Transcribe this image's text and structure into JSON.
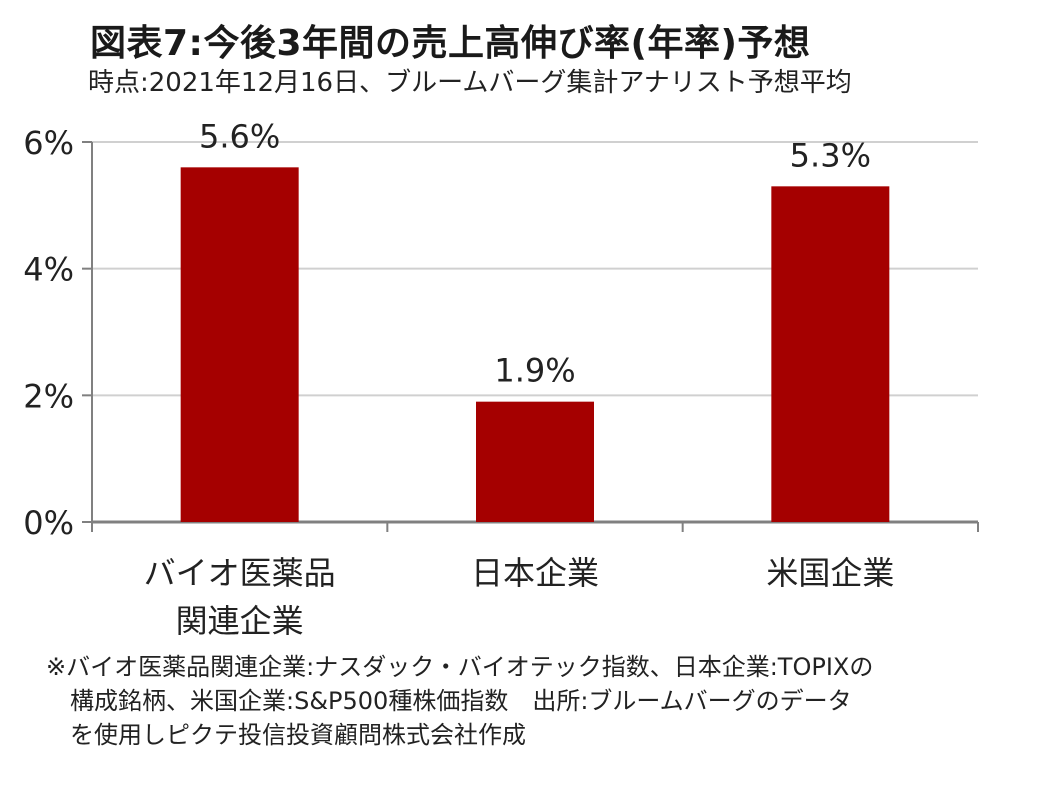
{
  "title": "図表7:今後3年間の売上高伸び率(年率)予想",
  "subtitle": "時点:2021年12月16日、ブルームバーグ集計アナリスト予想平均",
  "chart_data": {
    "type": "bar",
    "categories": [
      [
        "バイオ医薬品",
        "関連企業"
      ],
      [
        "日本企業"
      ],
      [
        "米国企業"
      ]
    ],
    "values": [
      5.6,
      1.9,
      5.3
    ],
    "data_labels": [
      "5.6%",
      "1.9%",
      "5.3%"
    ],
    "ylim": [
      0,
      6
    ],
    "yticks": [
      0,
      2,
      4,
      6
    ],
    "ytick_labels": [
      "0%",
      "2%",
      "4%",
      "6%"
    ],
    "grid": true,
    "bar_color": "#a50000",
    "xlabel": "",
    "ylabel": ""
  },
  "note": {
    "line1": "※バイオ医薬品関連企業:ナスダック・バイオテック指数、日本企業:TOPIXの",
    "line2": "構成銘柄、米国企業:S&P500種株価指数　出所:ブルームバーグのデータ",
    "line3": "を使用しピクテ投信投資顧問株式会社作成"
  }
}
